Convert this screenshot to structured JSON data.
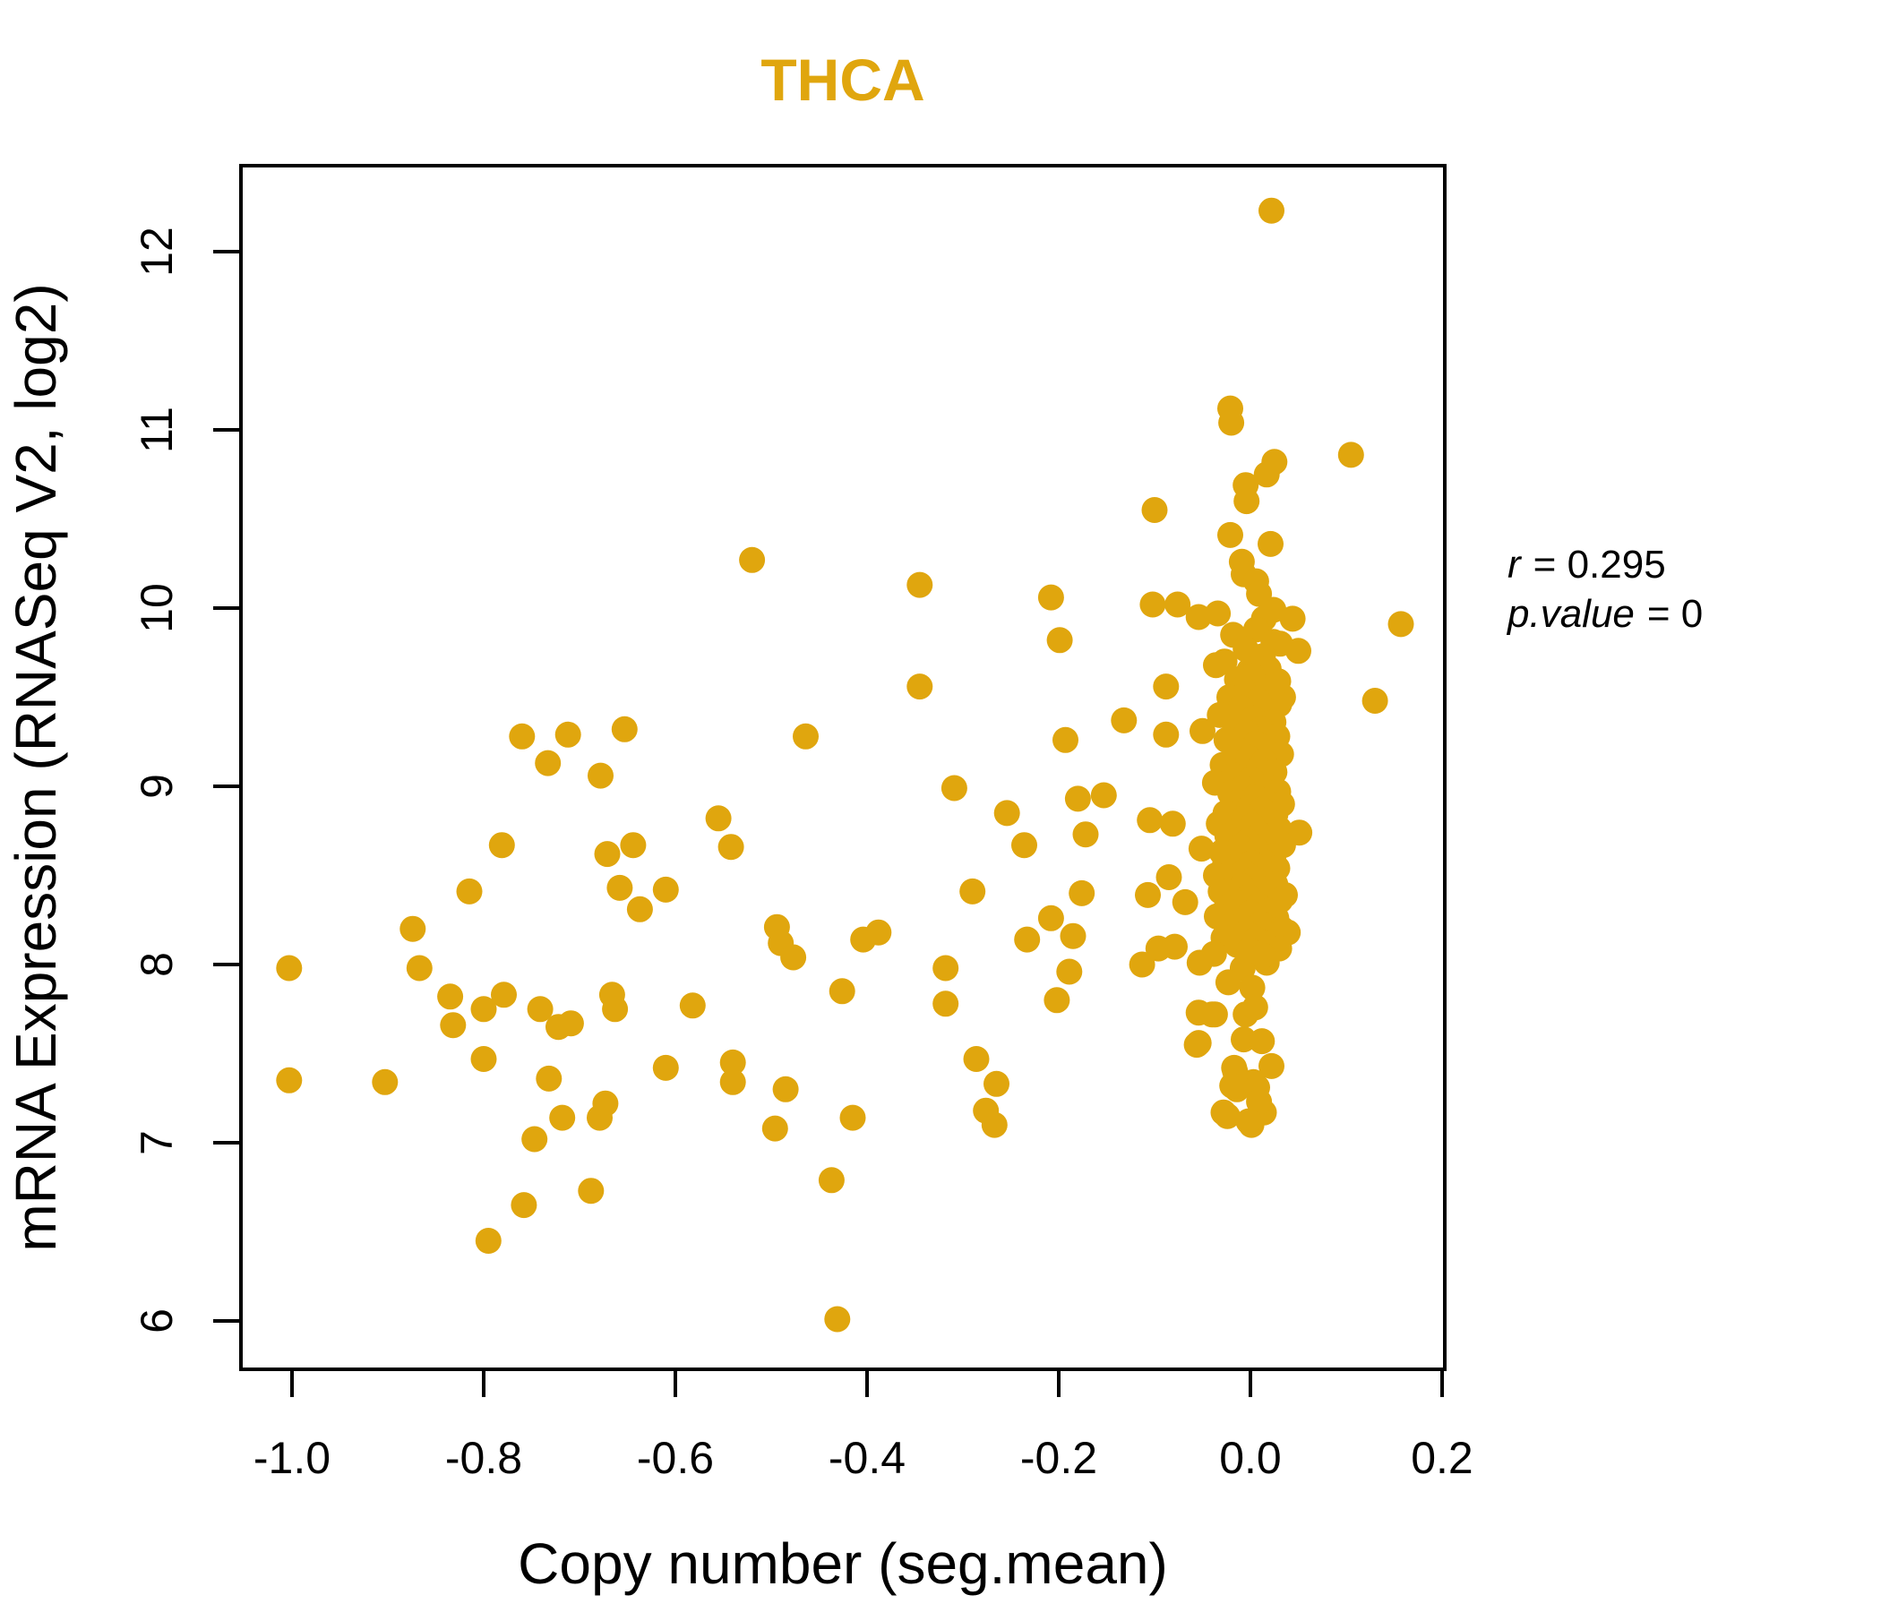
{
  "annotation": {
    "lines": [
      {
        "lhs": "r",
        "rhs": "= 0.295"
      },
      {
        "lhs": "p.value",
        "rhs": "= 0"
      }
    ]
  },
  "chart_data": {
    "type": "scatter",
    "title": "THCA",
    "xlabel": "Copy number (seg.mean)",
    "ylabel": "mRNA Expression (RNASeq V2, log2)",
    "x_ticks": [
      -1.0,
      -0.8,
      -0.6,
      -0.4,
      -0.2,
      0.0,
      0.2
    ],
    "x_tick_labels": [
      "-1.0",
      "-0.8",
      "-0.6",
      "-0.4",
      "-0.2",
      "0.0",
      "0.2"
    ],
    "y_ticks": [
      6,
      7,
      8,
      9,
      10,
      11,
      12
    ],
    "y_tick_labels": [
      "6",
      "7",
      "8",
      "9",
      "10",
      "11",
      "12"
    ],
    "xlim": [
      -1.053,
      0.203
    ],
    "ylim": [
      5.73,
      12.53
    ],
    "grid": false,
    "legend": null,
    "title_color": "#E0A60E",
    "point_color": "#E0A60E",
    "point_radius": 14.5,
    "correlation": {
      "r": 0.295,
      "p_value": 0
    },
    "points": [
      [
        -1.003,
        7.98
      ],
      [
        -1.003,
        7.35
      ],
      [
        -0.903,
        7.34
      ],
      [
        -0.874,
        8.2
      ],
      [
        -0.867,
        7.98
      ],
      [
        -0.835,
        7.82
      ],
      [
        -0.832,
        7.66
      ],
      [
        -0.815,
        8.41
      ],
      [
        -0.8,
        7.75
      ],
      [
        -0.8,
        7.47
      ],
      [
        -0.795,
        6.45
      ],
      [
        -0.781,
        8.67
      ],
      [
        -0.779,
        7.83
      ],
      [
        -0.76,
        9.28
      ],
      [
        -0.758,
        6.65
      ],
      [
        -0.747,
        7.02
      ],
      [
        -0.741,
        7.75
      ],
      [
        -0.733,
        9.13
      ],
      [
        -0.732,
        7.36
      ],
      [
        -0.722,
        7.65
      ],
      [
        -0.718,
        7.14
      ],
      [
        -0.712,
        9.29
      ],
      [
        -0.709,
        7.67
      ],
      [
        -0.688,
        6.73
      ],
      [
        -0.679,
        7.14
      ],
      [
        -0.678,
        9.06
      ],
      [
        -0.673,
        7.22
      ],
      [
        -0.671,
        8.62
      ],
      [
        -0.666,
        7.83
      ],
      [
        -0.663,
        7.75
      ],
      [
        -0.658,
        8.43
      ],
      [
        -0.653,
        9.32
      ],
      [
        -0.644,
        8.67
      ],
      [
        -0.637,
        8.31
      ],
      [
        -0.61,
        8.42
      ],
      [
        -0.61,
        7.42
      ],
      [
        -0.582,
        7.77
      ],
      [
        -0.555,
        8.82
      ],
      [
        -0.542,
        8.66
      ],
      [
        -0.54,
        7.45
      ],
      [
        -0.54,
        7.34
      ],
      [
        -0.52,
        10.27
      ],
      [
        -0.496,
        7.08
      ],
      [
        -0.494,
        8.21
      ],
      [
        -0.49,
        8.12
      ],
      [
        -0.485,
        7.3
      ],
      [
        -0.477,
        8.04
      ],
      [
        -0.464,
        9.28
      ],
      [
        -0.437,
        6.79
      ],
      [
        -0.431,
        6.01
      ],
      [
        -0.426,
        7.85
      ],
      [
        -0.415,
        7.14
      ],
      [
        -0.404,
        8.14
      ],
      [
        -0.388,
        8.18
      ],
      [
        -0.345,
        10.13
      ],
      [
        -0.345,
        9.56
      ],
      [
        -0.318,
        7.98
      ],
      [
        -0.318,
        7.78
      ],
      [
        -0.309,
        8.99
      ],
      [
        -0.29,
        8.41
      ],
      [
        -0.286,
        7.47
      ],
      [
        -0.276,
        7.18
      ],
      [
        -0.267,
        7.1
      ],
      [
        -0.265,
        7.33
      ],
      [
        -0.254,
        8.85
      ],
      [
        -0.236,
        8.67
      ],
      [
        -0.233,
        8.14
      ],
      [
        -0.208,
        10.06
      ],
      [
        -0.208,
        8.26
      ],
      [
        -0.202,
        7.8
      ],
      [
        -0.199,
        9.82
      ],
      [
        -0.193,
        9.26
      ],
      [
        -0.189,
        7.96
      ],
      [
        -0.185,
        8.16
      ],
      [
        -0.18,
        8.93
      ],
      [
        -0.176,
        8.4
      ],
      [
        -0.172,
        8.73
      ],
      [
        -0.153,
        8.95
      ],
      [
        -0.132,
        9.37
      ],
      [
        -0.113,
        8.0
      ],
      [
        -0.107,
        8.39
      ],
      [
        -0.105,
        8.81
      ],
      [
        -0.102,
        10.02
      ],
      [
        -0.1,
        10.55
      ],
      [
        -0.096,
        8.09
      ],
      [
        -0.088,
        9.56
      ],
      [
        -0.088,
        9.29
      ],
      [
        -0.085,
        8.49
      ],
      [
        -0.081,
        8.79
      ],
      [
        -0.079,
        8.1
      ],
      [
        -0.076,
        10.02
      ],
      [
        -0.068,
        8.35
      ],
      [
        0.022,
        12.23
      ],
      [
        -0.021,
        11.12
      ],
      [
        -0.02,
        11.04
      ],
      [
        0.105,
        10.86
      ],
      [
        0.025,
        10.82
      ],
      [
        0.017,
        10.75
      ],
      [
        -0.005,
        10.69
      ],
      [
        -0.004,
        10.6
      ],
      [
        -0.021,
        10.41
      ],
      [
        0.021,
        10.36
      ],
      [
        -0.009,
        10.26
      ],
      [
        -0.007,
        10.19
      ],
      [
        0.006,
        10.15
      ],
      [
        0.009,
        10.08
      ],
      [
        -0.054,
        9.95
      ],
      [
        -0.034,
        9.97
      ],
      [
        0.014,
        9.94
      ],
      [
        0.024,
        9.99
      ],
      [
        0.044,
        9.94
      ],
      [
        0.157,
        9.91
      ],
      [
        0.05,
        9.76
      ],
      [
        0.031,
        9.8
      ],
      [
        -0.036,
        9.68
      ],
      [
        -0.001,
        9.65
      ],
      [
        0.029,
        9.59
      ],
      [
        0.034,
        9.5
      ],
      [
        0.13,
        9.48
      ],
      [
        -0.05,
        9.31
      ],
      [
        -0.051,
        8.65
      ],
      [
        0.051,
        8.74
      ],
      [
        -0.056,
        7.55
      ],
      [
        -0.054,
        7.73
      ],
      [
        -0.037,
        7.72
      ],
      [
        0.039,
        8.18
      ],
      [
        0.036,
        8.39
      ],
      [
        -0.016,
        7.4
      ],
      [
        0.022,
        7.43
      ],
      [
        -0.014,
        7.3
      ],
      [
        0.003,
        7.34
      ],
      [
        -0.024,
        7.15
      ],
      [
        0.001,
        7.1
      ],
      [
        0.014,
        7.17
      ],
      [
        -0.008,
        7.98
      ],
      [
        0.017,
        8.01
      ],
      [
        -0.023,
        7.9
      ],
      [
        0.002,
        7.87
      ],
      [
        -0.053,
        8.01
      ],
      [
        -0.04,
        7.72
      ],
      [
        -0.005,
        7.72
      ],
      [
        0.005,
        7.76
      ],
      [
        -0.007,
        7.58
      ],
      [
        0.012,
        7.57
      ],
      [
        -0.054,
        7.56
      ],
      [
        -0.017,
        7.42
      ],
      [
        -0.019,
        7.32
      ],
      [
        0.007,
        7.31
      ],
      [
        0.009,
        7.23
      ],
      [
        -0.028,
        7.17
      ],
      [
        -0.002,
        7.12
      ],
      [
        0.006,
        9.88
      ],
      [
        -0.018,
        9.85
      ],
      [
        0.024,
        9.81
      ],
      [
        -0.005,
        9.77
      ],
      [
        0.013,
        9.73
      ],
      [
        -0.027,
        9.7
      ],
      [
        0.019,
        9.66
      ],
      [
        0.002,
        9.62
      ],
      [
        -0.014,
        9.6
      ],
      [
        0.027,
        9.57
      ],
      [
        -0.008,
        9.55
      ],
      [
        0.016,
        9.52
      ],
      [
        -0.022,
        9.5
      ],
      [
        0.008,
        9.48
      ],
      [
        0.03,
        9.46
      ],
      [
        -0.01,
        9.44
      ],
      [
        0.018,
        9.42
      ],
      [
        -0.032,
        9.4
      ],
      [
        0.003,
        9.38
      ],
      [
        0.024,
        9.36
      ],
      [
        -0.016,
        9.34
      ],
      [
        0.011,
        9.32
      ],
      [
        -0.004,
        9.3
      ],
      [
        0.028,
        9.28
      ],
      [
        -0.025,
        9.26
      ],
      [
        0.006,
        9.24
      ],
      [
        0.02,
        9.22
      ],
      [
        -0.012,
        9.2
      ],
      [
        0.032,
        9.18
      ],
      [
        -0.002,
        9.16
      ],
      [
        0.014,
        9.14
      ],
      [
        -0.029,
        9.12
      ],
      [
        0.009,
        9.1
      ],
      [
        0.025,
        9.08
      ],
      [
        -0.018,
        9.06
      ],
      [
        0.001,
        9.04
      ],
      [
        -0.037,
        9.02
      ],
      [
        0.017,
        9.0
      ],
      [
        -0.008,
        8.99
      ],
      [
        0.029,
        8.97
      ],
      [
        -0.021,
        8.96
      ],
      [
        0.005,
        8.94
      ],
      [
        0.022,
        8.93
      ],
      [
        -0.013,
        8.91
      ],
      [
        0.033,
        8.9
      ],
      [
        -0.001,
        8.88
      ],
      [
        0.012,
        8.87
      ],
      [
        -0.026,
        8.85
      ],
      [
        0.026,
        8.84
      ],
      [
        -0.006,
        8.82
      ],
      [
        0.018,
        8.81
      ],
      [
        -0.033,
        8.79
      ],
      [
        0.002,
        8.78
      ],
      [
        0.03,
        8.76
      ],
      [
        -0.015,
        8.75
      ],
      [
        0.01,
        8.73
      ],
      [
        -0.024,
        8.72
      ],
      [
        0.021,
        8.7
      ],
      [
        -0.003,
        8.69
      ],
      [
        0.034,
        8.67
      ],
      [
        -0.011,
        8.66
      ],
      [
        0.007,
        8.64
      ],
      [
        -0.03,
        8.63
      ],
      [
        0.024,
        8.61
      ],
      [
        -0.018,
        8.6
      ],
      [
        0.013,
        8.58
      ],
      [
        0.001,
        8.57
      ],
      [
        -0.027,
        8.55
      ],
      [
        0.028,
        8.54
      ],
      [
        -0.007,
        8.52
      ],
      [
        0.016,
        8.51
      ],
      [
        -0.036,
        8.5
      ],
      [
        0.004,
        8.48
      ],
      [
        -0.02,
        8.47
      ],
      [
        0.026,
        8.45
      ],
      [
        -0.009,
        8.44
      ],
      [
        0.015,
        8.42
      ],
      [
        -0.031,
        8.41
      ],
      [
        0.022,
        8.39
      ],
      [
        -0.002,
        8.38
      ],
      [
        0.031,
        8.36
      ],
      [
        -0.016,
        8.35
      ],
      [
        0.008,
        8.33
      ],
      [
        -0.025,
        8.32
      ],
      [
        0.019,
        8.3
      ],
      [
        0.0,
        8.29
      ],
      [
        -0.035,
        8.27
      ],
      [
        0.027,
        8.26
      ],
      [
        -0.012,
        8.24
      ],
      [
        0.011,
        8.23
      ],
      [
        -0.022,
        8.21
      ],
      [
        0.033,
        8.2
      ],
      [
        -0.005,
        8.18
      ],
      [
        0.017,
        8.17
      ],
      [
        -0.028,
        8.15
      ],
      [
        0.006,
        8.14
      ],
      [
        0.023,
        8.12
      ],
      [
        -0.014,
        8.11
      ],
      [
        0.03,
        8.09
      ],
      [
        -0.001,
        8.08
      ],
      [
        -0.038,
        8.06
      ],
      [
        0.013,
        8.05
      ]
    ]
  }
}
